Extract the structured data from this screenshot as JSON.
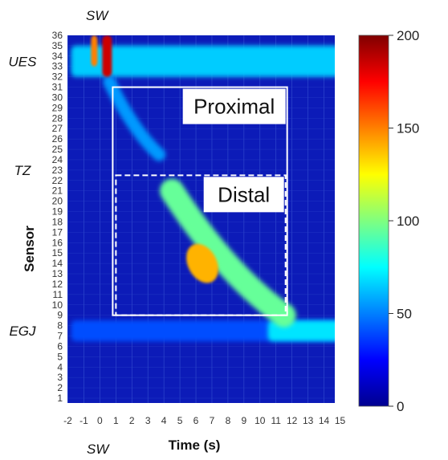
{
  "chart_data": {
    "type": "heatmap",
    "title": "",
    "xlabel": "Time (s)",
    "ylabel": "Sensor",
    "x_ticks": [
      "-2",
      "-1",
      "0",
      "1",
      "2",
      "3",
      "4",
      "5",
      "6",
      "7",
      "8",
      "9",
      "10",
      "11",
      "12",
      "13",
      "14",
      "15"
    ],
    "y_ticks": [
      "1",
      "2",
      "3",
      "4",
      "5",
      "6",
      "7",
      "8",
      "9",
      "10",
      "11",
      "12",
      "13",
      "14",
      "15",
      "16",
      "17",
      "18",
      "19",
      "20",
      "21",
      "22",
      "23",
      "24",
      "25",
      "26",
      "27",
      "28",
      "29",
      "30",
      "31",
      "32",
      "33",
      "34",
      "35",
      "36"
    ],
    "xlim": [
      -2,
      15
    ],
    "ylim": [
      1,
      36
    ],
    "colorbar": {
      "min": 0,
      "max": 200,
      "ticks": [
        "0",
        "50",
        "100",
        "150",
        "200"
      ],
      "colormap": "jet"
    },
    "annotations": {
      "sensor_labels": [
        {
          "text": "UES",
          "sensor": 33.5
        },
        {
          "text": "TZ",
          "sensor": 23
        },
        {
          "text": "EGJ",
          "sensor": 7.5
        }
      ],
      "swallow_top": "SW",
      "swallow_bottom": "SW"
    },
    "regions": [
      {
        "label": "Proximal",
        "x": [
          0,
          12
        ],
        "y": [
          9,
          31
        ],
        "style": "solid"
      },
      {
        "label": "Distal",
        "x": [
          0.2,
          11.9
        ],
        "y": [
          9,
          22.5
        ],
        "style": "dashed"
      }
    ],
    "pressure_features": [
      {
        "name": "UES band",
        "t": [
          -1.8,
          15
        ],
        "sensor": [
          32,
          35
        ],
        "value": 65
      },
      {
        "name": "swallow spike a",
        "t": [
          -0.55,
          -0.15
        ],
        "sensor": [
          33,
          36
        ],
        "value": 150
      },
      {
        "name": "swallow spike b",
        "t": [
          0.15,
          0.75
        ],
        "sensor": [
          32,
          36
        ],
        "value": 185
      },
      {
        "name": "proximal wave",
        "t": [
          0.6,
          3.7
        ],
        "sensor": [
          24.5,
          31.5
        ],
        "value": 55
      },
      {
        "name": "distal wave",
        "t": [
          4.5,
          11.5
        ],
        "sensor": [
          9,
          21
        ],
        "value": 95
      },
      {
        "name": "distal peak",
        "t": [
          5.5,
          7.3
        ],
        "sensor": [
          12,
          16
        ],
        "value": 140
      },
      {
        "name": "EGJ band",
        "t": [
          -1.8,
          15
        ],
        "sensor": [
          6.5,
          8.5
        ],
        "value": 40
      },
      {
        "name": "EGJ after swallow",
        "t": [
          10.5,
          15
        ],
        "sensor": [
          6.5,
          8.5
        ],
        "value": 70
      }
    ]
  }
}
